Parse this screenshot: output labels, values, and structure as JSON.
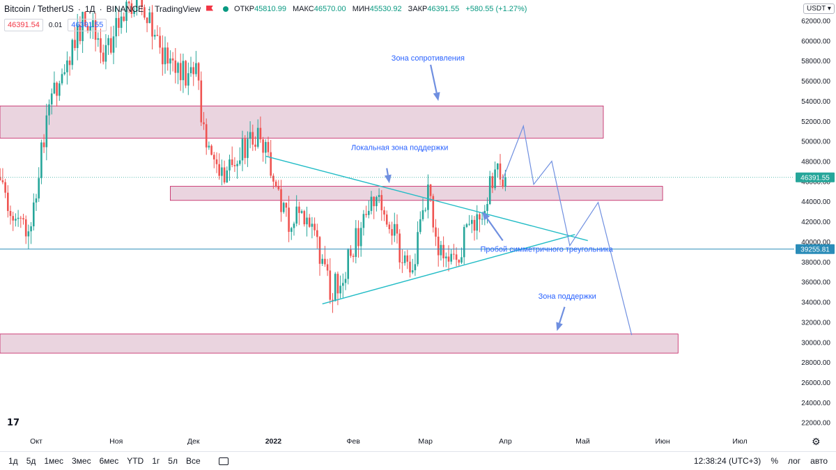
{
  "header": {
    "symbol": "Bitcoin / TetherUS",
    "separator": "·",
    "interval": "1Д",
    "exchange": "BINANCE",
    "source": "TradingView",
    "ohlc": {
      "open_label": "ОТКР",
      "open": "45810.99",
      "high_label": "МАКС",
      "high": "46570.00",
      "low_label": "МИН",
      "low": "45530.92",
      "close_label": "ЗАКР",
      "close": "46391.55",
      "change": "+580.55 (+1.27%)"
    },
    "sell_price": "46391.54",
    "spread": "0.01",
    "buy_price": "46391.55",
    "currency_button": "USDT"
  },
  "colors": {
    "up": "#26a69a",
    "down": "#ef5350",
    "zone_fill": "#e3c5d4",
    "zone_stroke": "#c2185b",
    "trendline": "#22bcc6",
    "projection": "#6f8fe0",
    "hline": "#2a8cb8",
    "price_badge": "#26a69a",
    "level_badge": "#2a8cb8"
  },
  "chart_data": {
    "type": "candlestick",
    "symbol": "BTCUSDT",
    "timeframe": "1D",
    "ylim": [
      21500,
      63500
    ],
    "y_ticks": [
      "22000.00",
      "24000.00",
      "26000.00",
      "28000.00",
      "30000.00",
      "32000.00",
      "34000.00",
      "36000.00",
      "38000.00",
      "40000.00",
      "42000.00",
      "44000.00",
      "46000.00",
      "48000.00",
      "50000.00",
      "52000.00",
      "54000.00",
      "56000.00",
      "58000.00",
      "60000.00",
      "62000.00"
    ],
    "x_ticks": [
      {
        "label": "Окт",
        "date": "2021-10-01"
      },
      {
        "label": "Ноя",
        "date": "2021-11-01"
      },
      {
        "label": "Дек",
        "date": "2021-12-01"
      },
      {
        "label": "2022",
        "date": "2022-01-01",
        "bold": true
      },
      {
        "label": "Фев",
        "date": "2022-02-01"
      },
      {
        "label": "Мар",
        "date": "2022-03-01"
      },
      {
        "label": "Апр",
        "date": "2022-04-01"
      },
      {
        "label": "Май",
        "date": "2022-05-01"
      },
      {
        "label": "Июн",
        "date": "2022-06-01"
      },
      {
        "label": "Июл",
        "date": "2022-07-01"
      }
    ],
    "last_price": 46391.55,
    "horizontal_level": 39255.81,
    "candle_path": [
      [
        "2021-09-15",
        47000
      ],
      [
        "2021-09-22",
        42500
      ],
      [
        "2021-09-29",
        41500
      ],
      [
        "2021-10-06",
        54000
      ],
      [
        "2021-10-13",
        57500
      ],
      [
        "2021-10-20",
        62500
      ],
      [
        "2021-10-27",
        58500
      ],
      [
        "2021-11-03",
        62000
      ],
      [
        "2021-11-10",
        64500
      ],
      [
        "2021-11-17",
        59500
      ],
      [
        "2021-11-24",
        57000
      ],
      [
        "2021-12-02",
        56500
      ],
      [
        "2021-12-06",
        49500
      ],
      [
        "2021-12-13",
        47000
      ],
      [
        "2021-12-20",
        49000
      ],
      [
        "2021-12-27",
        50500
      ],
      [
        "2021-12-31",
        47000
      ],
      [
        "2022-01-07",
        42000
      ],
      [
        "2022-01-14",
        43000
      ],
      [
        "2022-01-21",
        36500
      ],
      [
        "2022-01-24",
        35000
      ],
      [
        "2022-01-30",
        38000
      ],
      [
        "2022-02-07",
        43500
      ],
      [
        "2022-02-10",
        45000
      ],
      [
        "2022-02-14",
        42500
      ],
      [
        "2022-02-20",
        38500
      ],
      [
        "2022-02-24",
        37500
      ],
      [
        "2022-02-28",
        43000
      ],
      [
        "2022-03-02",
        44500
      ],
      [
        "2022-03-07",
        38500
      ],
      [
        "2022-03-14",
        39000
      ],
      [
        "2022-03-18",
        41500
      ],
      [
        "2022-03-24",
        43500
      ],
      [
        "2022-03-28",
        47500
      ],
      [
        "2022-04-01",
        46391
      ]
    ],
    "zones": [
      {
        "name": "resistance",
        "from": "2021-09-01",
        "to": "2022-05-09",
        "low": 50300,
        "high": 53500
      },
      {
        "name": "local_support",
        "from": "2021-11-22",
        "to": "2022-06-01",
        "low": 44100,
        "high": 45500
      },
      {
        "name": "support",
        "from": "2021-09-01",
        "to": "2022-06-07",
        "low": 28900,
        "high": 30800
      }
    ],
    "trendlines": [
      {
        "name": "triangle_upper",
        "points": [
          [
            "2021-12-29",
            48500
          ],
          [
            "2022-05-03",
            40100
          ]
        ]
      },
      {
        "name": "triangle_lower",
        "points": [
          [
            "2022-01-20",
            33800
          ],
          [
            "2022-04-28",
            40700
          ]
        ]
      }
    ],
    "projection": [
      [
        "2022-03-31",
        46200
      ],
      [
        "2022-04-08",
        51500
      ],
      [
        "2022-04-12",
        45700
      ],
      [
        "2022-04-19",
        48000
      ],
      [
        "2022-04-26",
        39600
      ],
      [
        "2022-05-07",
        43900
      ],
      [
        "2022-05-20",
        30700
      ]
    ],
    "arrows": [
      {
        "from": [
          "2022-03-03",
          57600
        ],
        "to": [
          "2022-03-06",
          54000
        ]
      },
      {
        "from": [
          "2022-02-14",
          47300
        ],
        "to": [
          "2022-02-15",
          45800
        ]
      },
      {
        "from": [
          "2022-03-31",
          40100
        ],
        "to": [
          "2022-03-23",
          43000
        ]
      },
      {
        "from": [
          "2022-04-24",
          33500
        ],
        "to": [
          "2022-04-21",
          31100
        ]
      }
    ],
    "annotations": [
      {
        "text": "Зона сопротивления",
        "x": "2022-03-02",
        "y": 58000
      },
      {
        "text": "Локальная зона поддержки",
        "x": "2022-02-19",
        "y": 49100
      },
      {
        "text": "Пробой симметричного треугольника",
        "x": "2022-04-17",
        "y": 39000
      },
      {
        "text": "Зона поддержки",
        "x": "2022-04-25",
        "y": 34300
      }
    ]
  },
  "bottombar": {
    "ranges": [
      "1д",
      "5д",
      "1мес",
      "3мес",
      "6мес",
      "YTD",
      "1г",
      "5л",
      "Все"
    ],
    "time": "12:38:24 (UTC+3)",
    "percent": "%",
    "log": "лог",
    "auto": "авто"
  }
}
